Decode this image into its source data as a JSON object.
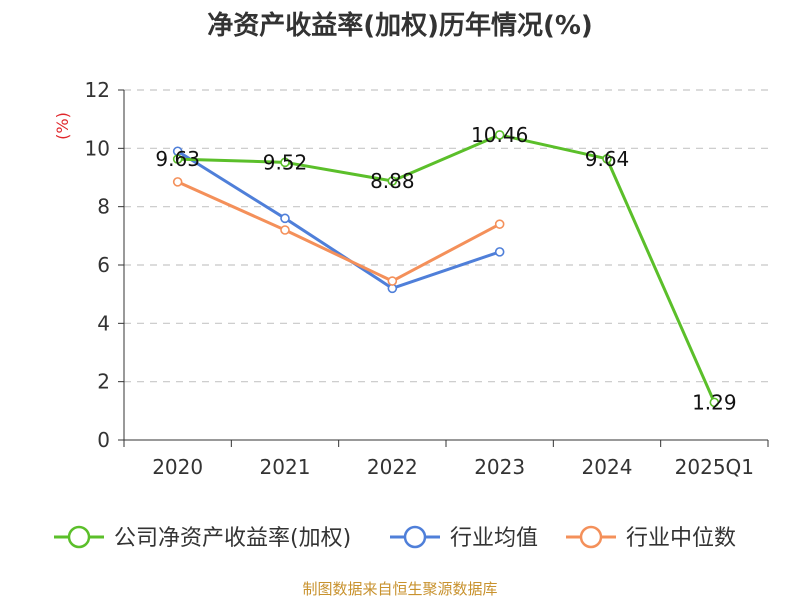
{
  "colors": {
    "company": "#5bbf2a",
    "industry_avg": "#4f7fd9",
    "industry_median": "#f4905a",
    "unit_color": "#e0262b",
    "source_color": "#c8922e"
  },
  "chart_data": {
    "type": "line",
    "title": "净资产收益率(加权)历年情况(%)",
    "ylabel": "(%)",
    "xlabel": "",
    "categories": [
      "2020",
      "2021",
      "2022",
      "2023",
      "2024",
      "2025Q1"
    ],
    "ylim": [
      0,
      12
    ],
    "yticks": [
      0,
      2,
      4,
      6,
      8,
      10,
      12
    ],
    "grid": true,
    "legend_position": "bottom",
    "series": [
      {
        "name": "公司净资产收益率(加权)",
        "color_key": "company",
        "values": [
          9.63,
          9.52,
          8.88,
          10.46,
          9.64,
          1.29
        ],
        "labeled": true
      },
      {
        "name": "行业均值",
        "color_key": "industry_avg",
        "values": [
          9.9,
          7.6,
          5.2,
          6.45,
          null,
          null
        ],
        "labeled": false
      },
      {
        "name": "行业中位数",
        "color_key": "industry_median",
        "values": [
          8.85,
          7.2,
          5.45,
          7.4,
          null,
          null
        ],
        "labeled": false
      }
    ]
  },
  "footer": {
    "source": "制图数据来自恒生聚源数据库"
  }
}
